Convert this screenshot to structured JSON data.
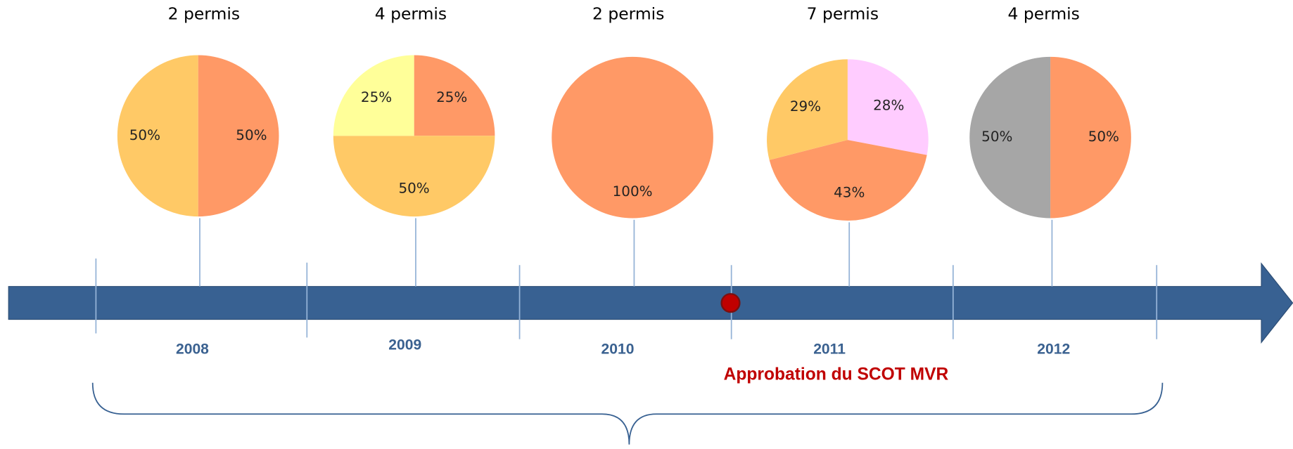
{
  "chart_data": [
    {
      "type": "pie",
      "title": "2 permis",
      "values": [
        50,
        50
      ],
      "value_labels": [
        "50%",
        "50%"
      ],
      "colors": [
        "#ff9966",
        "#ffc966"
      ]
    },
    {
      "type": "pie",
      "title": "4 permis",
      "values": [
        25,
        50,
        25
      ],
      "value_labels": [
        "25%",
        "50%",
        "25%"
      ],
      "colors": [
        "#ff9966",
        "#ffc966",
        "#ffff99"
      ]
    },
    {
      "type": "pie",
      "title": "2 permis",
      "values": [
        100
      ],
      "value_labels": [
        "100%"
      ],
      "colors": [
        "#ff9966"
      ]
    },
    {
      "type": "pie",
      "title": "7 permis",
      "values": [
        28,
        43,
        29
      ],
      "value_labels": [
        "28%",
        "43%",
        "29%"
      ],
      "colors": [
        "#ffccff",
        "#ff9966",
        "#ffc966"
      ]
    },
    {
      "type": "pie",
      "title": "4 permis",
      "values": [
        50,
        50
      ],
      "value_labels": [
        "50%",
        "50%"
      ],
      "colors": [
        "#ff9966",
        "#a6a6a6"
      ]
    }
  ],
  "timeline": {
    "years": [
      "2008",
      "2009",
      "2010",
      "2011",
      "2012"
    ],
    "annotation": "Approbation du SCOT MVR"
  }
}
